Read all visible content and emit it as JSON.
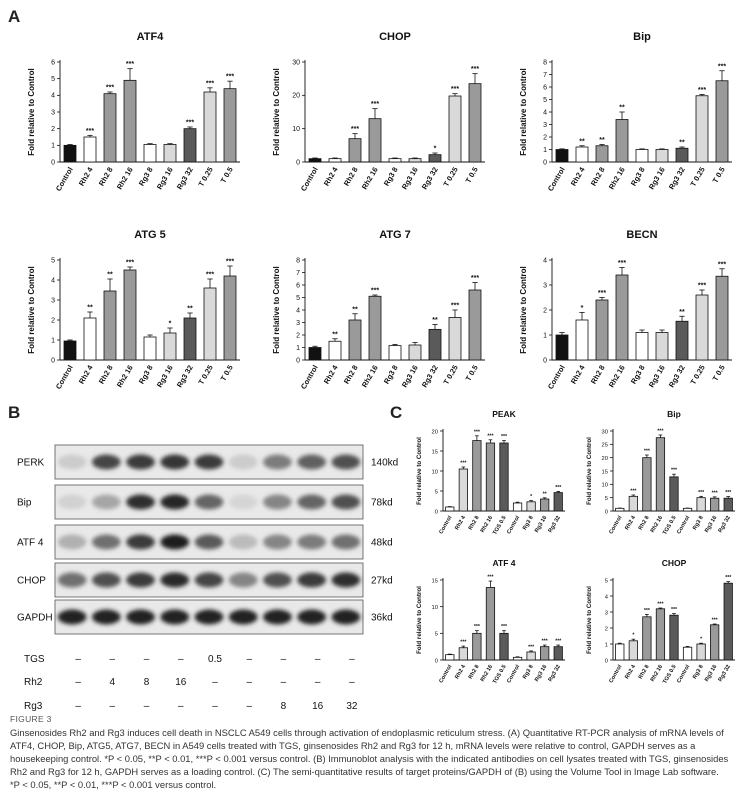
{
  "figure": {
    "panel_letters": [
      "A",
      "B",
      "C"
    ],
    "figure_number": "FIGURE 3",
    "caption": "Ginsenosides Rh2 and Rg3 induces cell death in NSCLC A549 cells through activation of endoplasmic reticulum stress. (A) Quantitative RT-PCR analysis of mRNA levels of ATF4, CHOP, Bip, ATG5, ATG7, BECN in A549 cells treated with TGS, ginsenosides Rh2 and Rg3 for 12 h, mRNA levels were relative to control, GAPDH serves as a housekeeping control. *P < 0.05, **P < 0.01, ***P < 0.001 versus control. (B) Immunoblot analysis with the indicated antibodies on cell lysates treated with TGS, ginsenosides Rh2 and Rg3 for 12 h, GAPDH serves as a loading control. (C) The semi-quantitative results of target proteins/GAPDH of (B) using the Volume Tool in Image Lab software. *P < 0.05, **P < 0.01, ***P < 0.001 versus control."
  },
  "colors": {
    "black": "#111111",
    "white": "#ffffff",
    "light": "#d9d9d9",
    "mid": "#9a9a9a",
    "dark": "#5a5a5a"
  },
  "blot": {
    "rows": [
      {
        "label": "PERK",
        "kd": "140kd",
        "intensity": [
          0.12,
          0.75,
          0.8,
          0.82,
          0.8,
          0.12,
          0.5,
          0.62,
          0.7
        ]
      },
      {
        "label": "Bip",
        "kd": "78kd",
        "intensity": [
          0.1,
          0.3,
          0.85,
          0.9,
          0.6,
          0.08,
          0.45,
          0.6,
          0.7
        ]
      },
      {
        "label": "ATF 4",
        "kd": "48kd",
        "intensity": [
          0.25,
          0.55,
          0.8,
          0.95,
          0.65,
          0.2,
          0.45,
          0.5,
          0.55
        ]
      },
      {
        "label": "CHOP",
        "kd": "27kd",
        "intensity": [
          0.55,
          0.7,
          0.8,
          0.88,
          0.75,
          0.45,
          0.7,
          0.8,
          0.85
        ]
      },
      {
        "label": "GAPDH",
        "kd": "36kd",
        "intensity": [
          0.92,
          0.92,
          0.92,
          0.92,
          0.92,
          0.92,
          0.92,
          0.92,
          0.92
        ]
      }
    ],
    "treatments": [
      {
        "label": "TGS",
        "values": [
          "–",
          "–",
          "–",
          "–",
          "0.5",
          "–",
          "–",
          "–",
          "–"
        ]
      },
      {
        "label": "Rh2",
        "values": [
          "–",
          "4",
          "8",
          "16",
          "–",
          "–",
          "–",
          "–",
          "–"
        ]
      },
      {
        "label": "Rg3",
        "values": [
          "–",
          "–",
          "–",
          "–",
          "–",
          "–",
          "8",
          "16",
          "32"
        ]
      }
    ]
  },
  "chart_data": [
    {
      "panel": "A",
      "type": "bar",
      "title": "ATF4",
      "ylabel": "Fold relative to Control",
      "ylim": [
        0,
        6
      ],
      "yticks": [
        0,
        1,
        2,
        3,
        4,
        5,
        6
      ],
      "categories": [
        "Control",
        "Rh2 4",
        "Rh2 8",
        "Rh2 16",
        "Rg3 8",
        "Rg3 16",
        "Rg3 32",
        "T 0.25",
        "T 0.5"
      ],
      "values": [
        1.0,
        1.5,
        4.1,
        4.9,
        1.05,
        1.05,
        2.0,
        4.2,
        4.4
      ],
      "errors": [
        0.05,
        0.1,
        0.1,
        0.7,
        0.05,
        0.05,
        0.1,
        0.25,
        0.45
      ],
      "significance": [
        "",
        "***",
        "***",
        "***",
        "",
        "",
        "***",
        "***",
        "***"
      ]
    },
    {
      "panel": "A",
      "type": "bar",
      "title": "CHOP",
      "ylabel": "Fold relative to Control",
      "ylim": [
        0,
        30
      ],
      "yticks": [
        0,
        10,
        20,
        30
      ],
      "categories": [
        "Control",
        "Rh2 4",
        "Rh2 8",
        "Rh2 16",
        "Rg3 8",
        "Rg3 16",
        "Rg3 32",
        "T 0.25",
        "T 0.5"
      ],
      "values": [
        1.0,
        1.0,
        7.0,
        13.0,
        1.0,
        1.0,
        2.2,
        19.8,
        23.5
      ],
      "errors": [
        0.2,
        0.2,
        1.5,
        3.0,
        0.2,
        0.2,
        0.5,
        0.7,
        3.0
      ],
      "significance": [
        "",
        "",
        "***",
        "***",
        "",
        "",
        "*",
        "***",
        "***"
      ]
    },
    {
      "panel": "A",
      "type": "bar",
      "title": "Bip",
      "ylabel": "Fold relative to Control",
      "ylim": [
        0,
        8
      ],
      "yticks": [
        0,
        1,
        2,
        3,
        4,
        5,
        6,
        7,
        8
      ],
      "categories": [
        "Control",
        "Rh2 4",
        "Rh2 8",
        "Rh2 16",
        "Rg3 8",
        "Rg3 16",
        "Rg3 32",
        "T 0.25",
        "T 0.5"
      ],
      "values": [
        1.0,
        1.2,
        1.3,
        3.4,
        1.0,
        1.0,
        1.1,
        5.3,
        6.5
      ],
      "errors": [
        0.05,
        0.1,
        0.1,
        0.6,
        0.05,
        0.05,
        0.1,
        0.1,
        0.8
      ],
      "significance": [
        "",
        "**",
        "**",
        "**",
        "",
        "",
        "**",
        "***",
        "***"
      ]
    },
    {
      "panel": "A",
      "type": "bar",
      "title": "ATG 5",
      "ylabel": "Fold relative to Control",
      "ylim": [
        0,
        5
      ],
      "yticks": [
        0,
        1,
        2,
        3,
        4,
        5
      ],
      "categories": [
        "Control",
        "Rh2 4",
        "Rh2 8",
        "Rh2 16",
        "Rg3 8",
        "Rg3 16",
        "Rg3 32",
        "T 0.25",
        "T 0.5"
      ],
      "values": [
        0.95,
        2.1,
        3.45,
        4.5,
        1.15,
        1.35,
        2.1,
        3.6,
        4.2
      ],
      "errors": [
        0.05,
        0.3,
        0.6,
        0.15,
        0.1,
        0.25,
        0.25,
        0.45,
        0.5
      ],
      "significance": [
        "",
        "**",
        "**",
        "***",
        "",
        "*",
        "**",
        "***",
        "***"
      ]
    },
    {
      "panel": "A",
      "type": "bar",
      "title": "ATG 7",
      "ylabel": "Fold relative to Control",
      "ylim": [
        0,
        8
      ],
      "yticks": [
        0,
        1,
        2,
        3,
        4,
        5,
        6,
        7,
        8
      ],
      "categories": [
        "Control",
        "Rh2 4",
        "Rh2 8",
        "Rh2 16",
        "Rg3 8",
        "Rg3 16",
        "Rg3 32",
        "T 0.25",
        "T 0.5"
      ],
      "values": [
        1.0,
        1.5,
        3.2,
        5.1,
        1.15,
        1.2,
        2.45,
        3.4,
        5.6
      ],
      "errors": [
        0.1,
        0.2,
        0.5,
        0.1,
        0.1,
        0.2,
        0.4,
        0.6,
        0.6
      ],
      "significance": [
        "",
        "**",
        "**",
        "***",
        "",
        "",
        "**",
        "***",
        "***"
      ]
    },
    {
      "panel": "A",
      "type": "bar",
      "title": "BECN",
      "ylabel": "Fold relative to Control",
      "ylim": [
        0,
        4
      ],
      "yticks": [
        0,
        1,
        2,
        3,
        4
      ],
      "categories": [
        "Control",
        "Rh2 4",
        "Rh2 8",
        "Rh2 16",
        "Rg3 8",
        "Rg3 16",
        "Rg3 32",
        "T 0.25",
        "T 0.5"
      ],
      "values": [
        1.0,
        1.6,
        2.4,
        3.4,
        1.1,
        1.1,
        1.55,
        2.6,
        3.35
      ],
      "errors": [
        0.1,
        0.3,
        0.1,
        0.3,
        0.1,
        0.1,
        0.2,
        0.2,
        0.3
      ],
      "significance": [
        "",
        "*",
        "***",
        "***",
        "",
        "",
        "**",
        "***",
        "***"
      ]
    },
    {
      "panel": "C",
      "type": "bar",
      "title": "PEAK",
      "ylabel": "Fold relative to Control",
      "ylim": [
        0,
        20
      ],
      "yticks": [
        0,
        5,
        10,
        15,
        20
      ],
      "categories": [
        "Control",
        "Rh2 4",
        "Rh2 8",
        "Rh2 16",
        "TGS 0.5",
        "Control",
        "Rg3 8",
        "Rg3 16",
        "Rg3 32"
      ],
      "values": [
        1.0,
        10.5,
        17.6,
        17.0,
        17.0,
        2.0,
        2.3,
        3.0,
        4.6
      ],
      "errors": [
        0.1,
        0.5,
        1.2,
        0.8,
        0.6,
        0.2,
        0.3,
        0.3,
        0.3
      ],
      "significance": [
        "",
        "***",
        "***",
        "***",
        "***",
        "",
        "*",
        "**",
        "***"
      ]
    },
    {
      "panel": "C",
      "type": "bar",
      "title": "Bip",
      "ylabel": "Fold relative to Control",
      "ylim": [
        0,
        30
      ],
      "yticks": [
        0,
        5,
        10,
        15,
        20,
        25,
        30
      ],
      "categories": [
        "Control",
        "Rh2 4",
        "Rh2 8",
        "Rh2 16",
        "TGS 0.5",
        "Control",
        "Rg3 8",
        "Rg3 16",
        "Rg3 32"
      ],
      "values": [
        1.0,
        5.5,
        20.0,
        27.5,
        12.8,
        1.0,
        5.0,
        4.8,
        4.8
      ],
      "errors": [
        0.1,
        0.5,
        1.0,
        1.0,
        1.0,
        0.1,
        0.5,
        0.5,
        0.6
      ],
      "significance": [
        "",
        "***",
        "***",
        "***",
        "***",
        "",
        "***",
        "***",
        "***"
      ]
    },
    {
      "panel": "C",
      "type": "bar",
      "title": "ATF 4",
      "ylabel": "Fold relative to Control",
      "ylim": [
        0,
        15
      ],
      "yticks": [
        0,
        5,
        10,
        15
      ],
      "categories": [
        "Control",
        "Rh2 4",
        "Rh2 8",
        "Rh2 16",
        "TGS 0.5",
        "Control",
        "Rg3 8",
        "Rg3 16",
        "Rg3 32"
      ],
      "values": [
        1.0,
        2.3,
        5.0,
        13.6,
        5.0,
        0.5,
        1.5,
        2.5,
        2.5
      ],
      "errors": [
        0.1,
        0.3,
        0.5,
        1.2,
        0.5,
        0.1,
        0.2,
        0.3,
        0.3
      ],
      "significance": [
        "",
        "***",
        "***",
        "***",
        "***",
        "",
        "***",
        "***",
        "***"
      ]
    },
    {
      "panel": "C",
      "type": "bar",
      "title": "CHOP",
      "ylabel": "Fold relative to Control",
      "ylim": [
        0,
        5
      ],
      "yticks": [
        0,
        1,
        2,
        3,
        4,
        5
      ],
      "categories": [
        "Control",
        "Rh2 4",
        "Rh2 8",
        "Rh2 16",
        "TGS 0.5",
        "Control",
        "Rg3 8",
        "Rg3 16",
        "Rg3 32"
      ],
      "values": [
        1.0,
        1.2,
        2.7,
        3.2,
        2.8,
        0.8,
        1.0,
        2.2,
        4.8
      ],
      "errors": [
        0.05,
        0.1,
        0.15,
        0.05,
        0.1,
        0.05,
        0.05,
        0.05,
        0.1
      ],
      "significance": [
        "",
        "*",
        "***",
        "***",
        "***",
        "",
        "*",
        "***",
        "***"
      ]
    }
  ]
}
